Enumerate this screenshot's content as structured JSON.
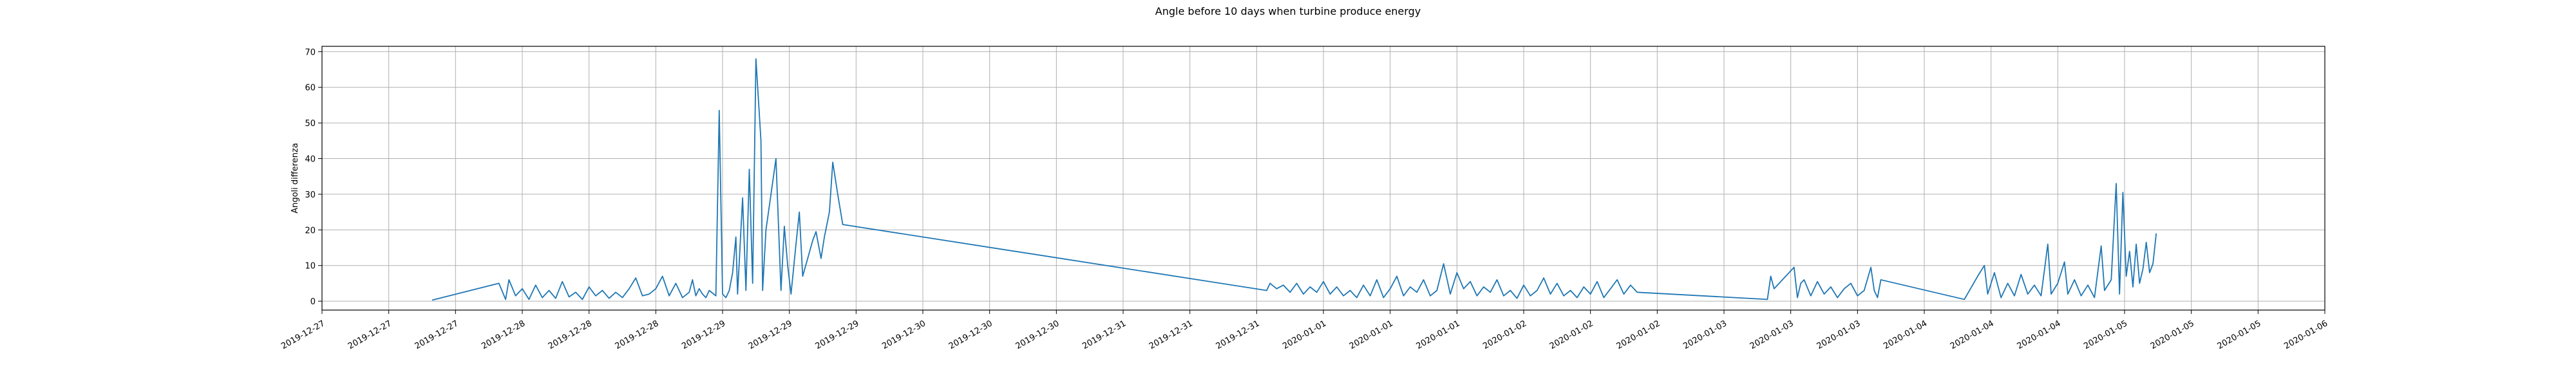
{
  "chart_data": {
    "type": "line",
    "title": "Angle before 10 days when turbine produce energy",
    "xlabel": "",
    "ylabel": "Angoli differenza",
    "ylim": [
      -2.5,
      71.5
    ],
    "yticks": [
      0,
      10,
      20,
      30,
      40,
      50,
      60,
      70
    ],
    "xlim": [
      0,
      60
    ],
    "xtick_positions": [
      0,
      2,
      4,
      6,
      8,
      10,
      12,
      14,
      16,
      18,
      20,
      22,
      24,
      26,
      28,
      30,
      32,
      34,
      36,
      38,
      40,
      42,
      44,
      46,
      48,
      50,
      52,
      54,
      56,
      58,
      60
    ],
    "xtick_labels": [
      "2019-12-27",
      "2019-12-27",
      "2019-12-27",
      "2019-12-28",
      "2019-12-28",
      "2019-12-28",
      "2019-12-29",
      "2019-12-29",
      "2019-12-29",
      "2019-12-30",
      "2019-12-30",
      "2019-12-30",
      "2019-12-31",
      "2019-12-31",
      "2019-12-31",
      "2020-01-01",
      "2020-01-01",
      "2020-01-01",
      "2020-01-02",
      "2020-01-02",
      "2020-01-02",
      "2020-01-03",
      "2020-01-03",
      "2020-01-03",
      "2020-01-04",
      "2020-01-04",
      "2020-01-04",
      "2020-01-05",
      "2020-01-05",
      "2020-01-05",
      "2020-01-06"
    ],
    "grid": true,
    "color": "#1f77b4",
    "series": [
      {
        "name": "",
        "points": [
          [
            3.3,
            0.3
          ],
          [
            5.3,
            5.0
          ],
          [
            5.5,
            0.5
          ],
          [
            5.6,
            6.0
          ],
          [
            5.8,
            1.5
          ],
          [
            6.0,
            3.5
          ],
          [
            6.2,
            0.5
          ],
          [
            6.4,
            4.5
          ],
          [
            6.6,
            1.0
          ],
          [
            6.8,
            3.0
          ],
          [
            7.0,
            0.8
          ],
          [
            7.2,
            5.5
          ],
          [
            7.4,
            1.2
          ],
          [
            7.6,
            2.5
          ],
          [
            7.8,
            0.5
          ],
          [
            8.0,
            4.0
          ],
          [
            8.2,
            1.5
          ],
          [
            8.4,
            3.0
          ],
          [
            8.6,
            0.8
          ],
          [
            8.8,
            2.5
          ],
          [
            9.0,
            1.0
          ],
          [
            9.2,
            3.5
          ],
          [
            9.4,
            6.5
          ],
          [
            9.6,
            1.5
          ],
          [
            9.8,
            2.0
          ],
          [
            10.0,
            3.5
          ],
          [
            10.2,
            7.0
          ],
          [
            10.4,
            1.5
          ],
          [
            10.6,
            5.0
          ],
          [
            10.8,
            1.0
          ],
          [
            11.0,
            2.5
          ],
          [
            11.1,
            6.0
          ],
          [
            11.2,
            1.5
          ],
          [
            11.3,
            3.5
          ],
          [
            11.4,
            2.0
          ],
          [
            11.5,
            1.0
          ],
          [
            11.6,
            3.0
          ],
          [
            11.8,
            1.5
          ],
          [
            11.9,
            53.5
          ],
          [
            12.0,
            2.0
          ],
          [
            12.1,
            1.0
          ],
          [
            12.2,
            3.0
          ],
          [
            12.3,
            8.0
          ],
          [
            12.4,
            18.0
          ],
          [
            12.45,
            2.0
          ],
          [
            12.6,
            29.0
          ],
          [
            12.7,
            3.0
          ],
          [
            12.8,
            37.0
          ],
          [
            12.9,
            5.0
          ],
          [
            13.0,
            68.0
          ],
          [
            13.15,
            45.0
          ],
          [
            13.2,
            3.0
          ],
          [
            13.3,
            20.0
          ],
          [
            13.45,
            30.0
          ],
          [
            13.6,
            40.0
          ],
          [
            13.75,
            3.0
          ],
          [
            13.85,
            21.0
          ],
          [
            13.95,
            10.0
          ],
          [
            14.05,
            2.0
          ],
          [
            14.2,
            16.0
          ],
          [
            14.3,
            25.0
          ],
          [
            14.4,
            7.0
          ],
          [
            14.55,
            12.0
          ],
          [
            14.7,
            17.0
          ],
          [
            14.8,
            19.5
          ],
          [
            14.95,
            12.0
          ],
          [
            15.05,
            18.0
          ],
          [
            15.2,
            25.0
          ],
          [
            15.3,
            39.0
          ],
          [
            15.45,
            30.0
          ],
          [
            15.6,
            21.5
          ],
          [
            28.3,
            3.0
          ],
          [
            28.4,
            5.0
          ],
          [
            28.6,
            3.5
          ],
          [
            28.8,
            4.5
          ],
          [
            29.0,
            2.5
          ],
          [
            29.2,
            5.0
          ],
          [
            29.4,
            2.0
          ],
          [
            29.6,
            4.0
          ],
          [
            29.8,
            2.5
          ],
          [
            30.0,
            5.5
          ],
          [
            30.2,
            2.0
          ],
          [
            30.4,
            4.0
          ],
          [
            30.6,
            1.5
          ],
          [
            30.8,
            3.0
          ],
          [
            31.0,
            1.0
          ],
          [
            31.2,
            4.5
          ],
          [
            31.4,
            1.5
          ],
          [
            31.6,
            6.0
          ],
          [
            31.8,
            1.0
          ],
          [
            32.0,
            3.5
          ],
          [
            32.2,
            7.0
          ],
          [
            32.4,
            1.5
          ],
          [
            32.6,
            4.0
          ],
          [
            32.8,
            2.5
          ],
          [
            33.0,
            6.0
          ],
          [
            33.2,
            1.5
          ],
          [
            33.4,
            3.0
          ],
          [
            33.6,
            10.5
          ],
          [
            33.8,
            2.0
          ],
          [
            34.0,
            8.0
          ],
          [
            34.2,
            3.5
          ],
          [
            34.4,
            5.5
          ],
          [
            34.6,
            1.5
          ],
          [
            34.8,
            4.0
          ],
          [
            35.0,
            2.5
          ],
          [
            35.2,
            6.0
          ],
          [
            35.4,
            1.5
          ],
          [
            35.6,
            3.0
          ],
          [
            35.8,
            0.8
          ],
          [
            36.0,
            4.5
          ],
          [
            36.2,
            1.5
          ],
          [
            36.4,
            3.0
          ],
          [
            36.6,
            6.5
          ],
          [
            36.8,
            2.0
          ],
          [
            37.0,
            5.0
          ],
          [
            37.2,
            1.5
          ],
          [
            37.4,
            3.0
          ],
          [
            37.6,
            1.0
          ],
          [
            37.8,
            4.0
          ],
          [
            38.0,
            2.0
          ],
          [
            38.2,
            5.5
          ],
          [
            38.4,
            1.0
          ],
          [
            38.6,
            3.5
          ],
          [
            38.8,
            6.0
          ],
          [
            39.0,
            2.0
          ],
          [
            39.2,
            4.5
          ],
          [
            39.4,
            2.5
          ],
          [
            43.3,
            0.5
          ],
          [
            43.4,
            7.0
          ],
          [
            43.5,
            3.5
          ],
          [
            44.1,
            9.5
          ],
          [
            44.2,
            1.0
          ],
          [
            44.3,
            5.0
          ],
          [
            44.4,
            6.0
          ],
          [
            44.6,
            1.5
          ],
          [
            44.8,
            5.5
          ],
          [
            45.0,
            2.0
          ],
          [
            45.2,
            4.0
          ],
          [
            45.4,
            1.0
          ],
          [
            45.6,
            3.5
          ],
          [
            45.8,
            5.0
          ],
          [
            46.0,
            1.5
          ],
          [
            46.2,
            3.0
          ],
          [
            46.4,
            9.5
          ],
          [
            46.5,
            3.0
          ],
          [
            46.6,
            1.0
          ],
          [
            46.7,
            6.0
          ],
          [
            49.2,
            0.5
          ],
          [
            49.6,
            7.0
          ],
          [
            49.8,
            10.0
          ],
          [
            49.9,
            2.0
          ],
          [
            50.1,
            8.0
          ],
          [
            50.3,
            1.0
          ],
          [
            50.5,
            5.0
          ],
          [
            50.7,
            1.5
          ],
          [
            50.9,
            7.5
          ],
          [
            51.1,
            2.0
          ],
          [
            51.3,
            4.5
          ],
          [
            51.5,
            1.5
          ],
          [
            51.7,
            16.0
          ],
          [
            51.8,
            2.0
          ],
          [
            52.0,
            5.0
          ],
          [
            52.2,
            11.0
          ],
          [
            52.3,
            2.0
          ],
          [
            52.5,
            6.0
          ],
          [
            52.7,
            1.5
          ],
          [
            52.9,
            4.5
          ],
          [
            53.1,
            1.0
          ],
          [
            53.3,
            15.5
          ],
          [
            53.4,
            3.0
          ],
          [
            53.6,
            6.0
          ],
          [
            53.75,
            33.0
          ],
          [
            53.85,
            2.0
          ],
          [
            53.95,
            30.5
          ],
          [
            54.05,
            7.0
          ],
          [
            54.15,
            14.0
          ],
          [
            54.25,
            4.0
          ],
          [
            54.35,
            16.0
          ],
          [
            54.45,
            5.0
          ],
          [
            54.55,
            9.0
          ],
          [
            54.65,
            16.5
          ],
          [
            54.75,
            8.0
          ],
          [
            54.85,
            10.5
          ],
          [
            54.95,
            19.0
          ]
        ]
      }
    ]
  }
}
